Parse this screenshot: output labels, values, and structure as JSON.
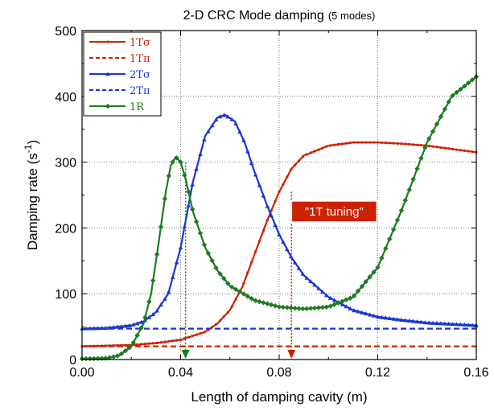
{
  "chart_data": {
    "type": "line",
    "title": "2-D CRC Mode damping",
    "subtitle": "(5 modes)",
    "xlabel": "Length of damping cavity (m)",
    "ylabel": "Damping rate (s",
    "ylabel_superscript": "-1",
    "ylabel_close": ")",
    "xlim": [
      0,
      0.16
    ],
    "ylim": [
      0,
      500
    ],
    "x_ticks": [
      "0.00",
      "0.04",
      "0.08",
      "0.12",
      "0.16"
    ],
    "y_ticks": [
      "0",
      "100",
      "200",
      "300",
      "400",
      "500"
    ],
    "grid": "dotted",
    "legend_position": "top-left",
    "series": [
      {
        "name": "1Tσ",
        "color": "#cc2200",
        "style": "solid",
        "marker": "dot",
        "x": [
          0,
          0.01,
          0.02,
          0.03,
          0.04,
          0.05,
          0.055,
          0.06,
          0.065,
          0.07,
          0.075,
          0.08,
          0.085,
          0.09,
          0.1,
          0.11,
          0.12,
          0.13,
          0.14,
          0.15,
          0.16
        ],
        "y": [
          20,
          21,
          22,
          25,
          30,
          42,
          55,
          75,
          110,
          160,
          210,
          255,
          290,
          310,
          325,
          330,
          330,
          328,
          325,
          320,
          315
        ]
      },
      {
        "name": "1Tπ",
        "color": "#cc2200",
        "style": "dashed",
        "marker": "none",
        "x": [
          0,
          0.16
        ],
        "y": [
          20,
          20
        ]
      },
      {
        "name": "2Tσ",
        "color": "#1a35d6",
        "style": "solid",
        "marker": "triangle",
        "x": [
          0,
          0.01,
          0.02,
          0.025,
          0.03,
          0.035,
          0.04,
          0.045,
          0.05,
          0.055,
          0.058,
          0.062,
          0.066,
          0.07,
          0.075,
          0.08,
          0.085,
          0.09,
          0.1,
          0.11,
          0.12,
          0.13,
          0.14,
          0.15,
          0.16
        ],
        "y": [
          47,
          48,
          52,
          58,
          72,
          100,
          170,
          270,
          340,
          368,
          372,
          362,
          330,
          285,
          235,
          190,
          155,
          128,
          95,
          75,
          65,
          60,
          56,
          54,
          52
        ]
      },
      {
        "name": "2Tπ",
        "color": "#1a35d6",
        "style": "dashed",
        "marker": "none",
        "x": [
          0,
          0.16
        ],
        "y": [
          47,
          47
        ]
      },
      {
        "name": "1R",
        "color": "#1e7a1e",
        "style": "solid",
        "marker": "diamond",
        "x": [
          0,
          0.01,
          0.015,
          0.02,
          0.025,
          0.028,
          0.031,
          0.034,
          0.036,
          0.038,
          0.04,
          0.042,
          0.045,
          0.05,
          0.055,
          0.06,
          0.07,
          0.08,
          0.09,
          0.1,
          0.11,
          0.12,
          0.13,
          0.14,
          0.15,
          0.16
        ],
        "y": [
          1,
          2,
          6,
          20,
          55,
          100,
          175,
          255,
          295,
          308,
          300,
          275,
          225,
          170,
          135,
          112,
          90,
          80,
          77,
          80,
          95,
          140,
          230,
          330,
          400,
          430
        ]
      }
    ],
    "annotations": [
      {
        "text": "\"1T tuning\"",
        "x": 0.085,
        "y": 225,
        "color": "#cc2200"
      }
    ],
    "vertical_markers": [
      {
        "x": 0.042,
        "y_top": 300,
        "color": "#1e7a1e"
      },
      {
        "x": 0.085,
        "y_top": 255,
        "color": "#cc2200"
      }
    ]
  }
}
